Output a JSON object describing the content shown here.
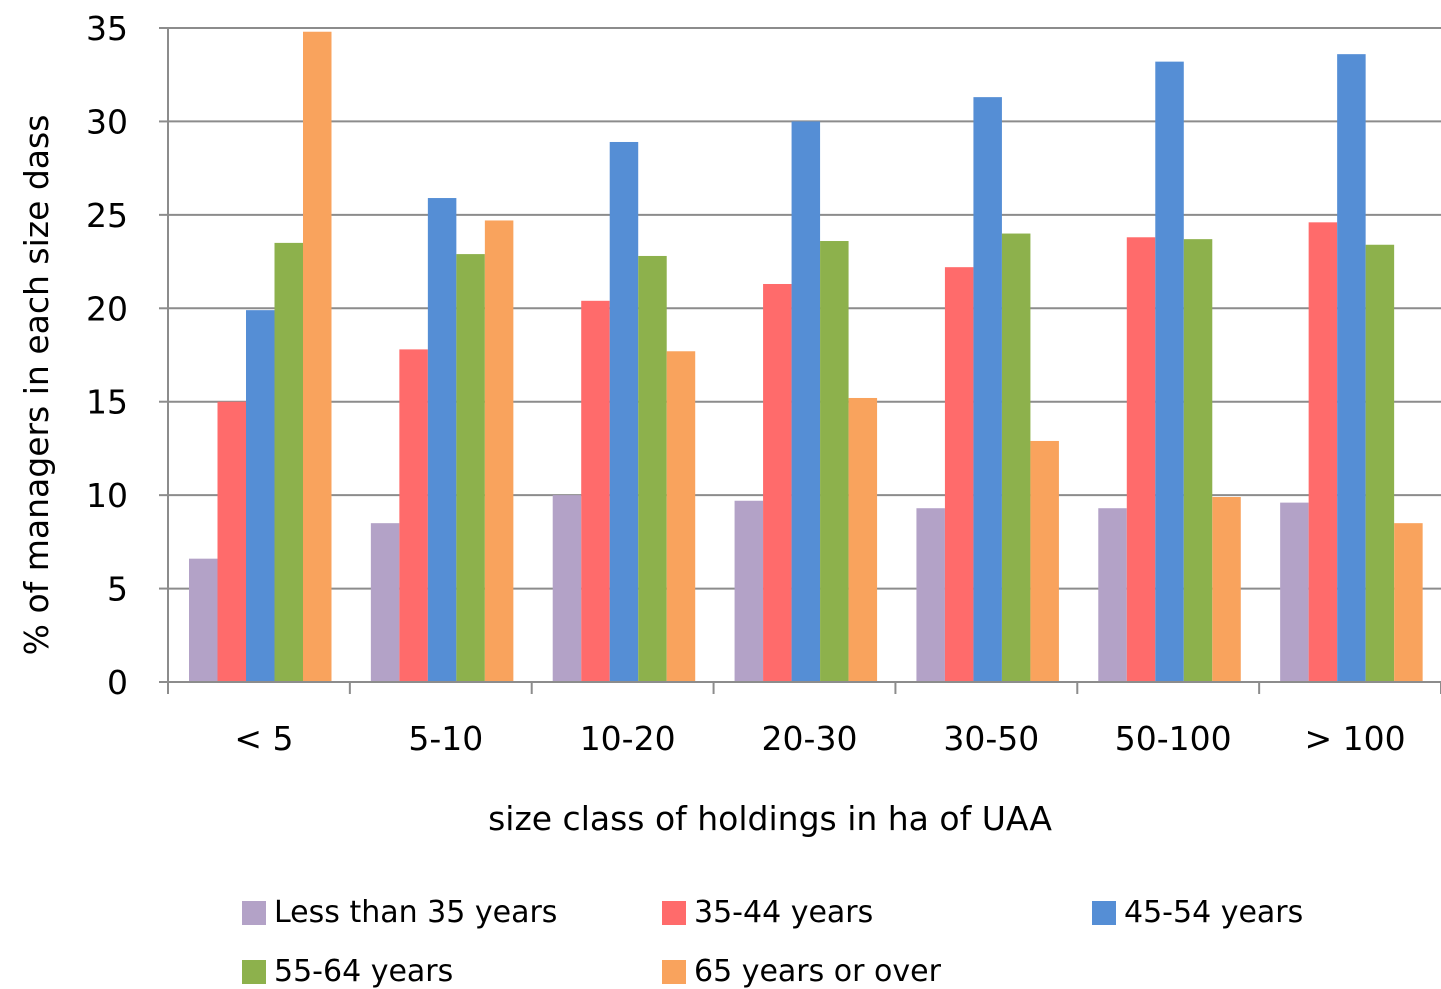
{
  "chart_data": {
    "type": "bar",
    "title": "",
    "xlabel": "size class of holdings in ha of UAA",
    "ylabel": "% of managers in each size dass",
    "ylim": [
      0,
      35
    ],
    "yticks": [
      0,
      5,
      10,
      15,
      20,
      25,
      30,
      35
    ],
    "grid": true,
    "legend_position": "bottom",
    "categories": [
      "< 5",
      "5-10",
      "10-20",
      "20-30",
      "30-50",
      "50-100",
      "> 100"
    ],
    "series": [
      {
        "name": "Less than 35 years",
        "color": "#b3a2c7",
        "values": [
          6.6,
          8.5,
          10.0,
          9.7,
          9.3,
          9.3,
          9.6
        ]
      },
      {
        "name": "35-44 years",
        "color": "#ff6b6b",
        "values": [
          15.0,
          17.8,
          20.4,
          21.3,
          22.2,
          23.8,
          24.6
        ]
      },
      {
        "name": "45-54 years",
        "color": "#558ed5",
        "values": [
          19.9,
          25.9,
          28.9,
          30.0,
          31.3,
          33.2,
          33.6
        ]
      },
      {
        "name": "55-64 years",
        "color": "#8db14c",
        "values": [
          23.5,
          22.9,
          22.8,
          23.6,
          24.0,
          23.7,
          23.4
        ]
      },
      {
        "name": "65 years or over",
        "color": "#f9a35d",
        "values": [
          34.8,
          24.7,
          17.7,
          15.2,
          12.9,
          9.9,
          8.5
        ]
      }
    ]
  }
}
